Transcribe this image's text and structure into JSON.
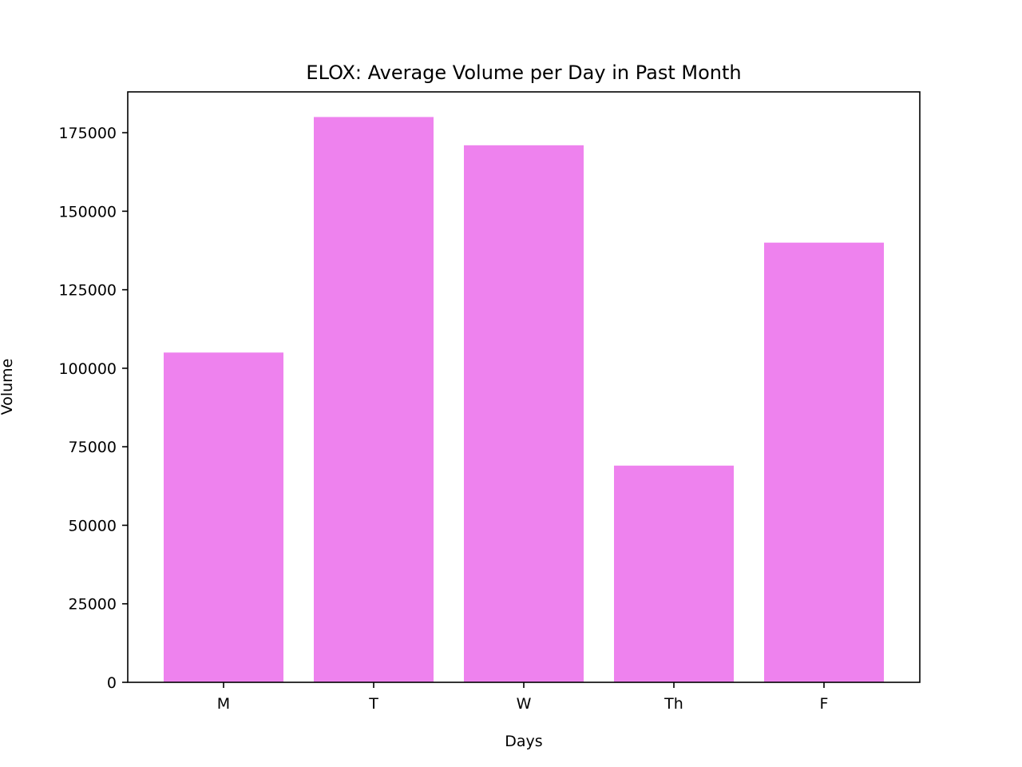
{
  "chart_data": {
    "type": "bar",
    "title": "ELOX: Average Volume per Day in Past Month",
    "xlabel": "Days",
    "ylabel": "Volume",
    "categories": [
      "M",
      "T",
      "W",
      "Th",
      "F"
    ],
    "values": [
      105000,
      180000,
      171000,
      69000,
      140000
    ],
    "ylim": [
      0,
      188000
    ],
    "yticks": [
      0,
      25000,
      50000,
      75000,
      100000,
      125000,
      150000,
      175000
    ],
    "bar_color": "#ee82ee",
    "grid": false,
    "legend": "none"
  }
}
